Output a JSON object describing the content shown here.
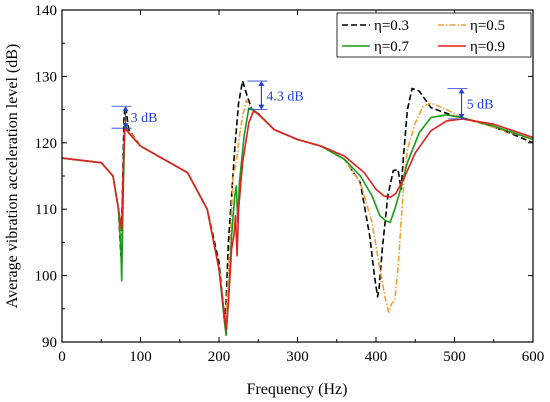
{
  "chart_data": {
    "type": "line",
    "xlabel": "Frequency (Hz)",
    "ylabel": "Average vibration acceleration level (dB)",
    "xlim": [
      0,
      600
    ],
    "ylim": [
      90,
      140
    ],
    "xticks": [
      0,
      100,
      200,
      300,
      400,
      500,
      600
    ],
    "yticks": [
      90,
      100,
      110,
      120,
      130,
      140
    ],
    "grid": false,
    "legend": "top-right",
    "series": [
      {
        "name": "η=0.3",
        "color": "#000000",
        "dash": "dashed",
        "points": [
          [
            0,
            117.7
          ],
          [
            50,
            117
          ],
          [
            65,
            115
          ],
          [
            72,
            110
          ],
          [
            75,
            103
          ],
          [
            77,
            112
          ],
          [
            79,
            124
          ],
          [
            81,
            125.5
          ],
          [
            85,
            122
          ],
          [
            100,
            119.5
          ],
          [
            130,
            117.5
          ],
          [
            160,
            115.5
          ],
          [
            185,
            110
          ],
          [
            200,
            102
          ],
          [
            205,
            96
          ],
          [
            207,
            93
          ],
          [
            209,
            96
          ],
          [
            212,
            105
          ],
          [
            216,
            112
          ],
          [
            220,
            119
          ],
          [
            225,
            126
          ],
          [
            230,
            129.3
          ],
          [
            236,
            127
          ],
          [
            242,
            125
          ],
          [
            250,
            124.4
          ],
          [
            270,
            122
          ],
          [
            300,
            120.5
          ],
          [
            330,
            119.5
          ],
          [
            360,
            117.5
          ],
          [
            380,
            114
          ],
          [
            392,
            106
          ],
          [
            398,
            100
          ],
          [
            402,
            96.8
          ],
          [
            404,
            98
          ],
          [
            408,
            104
          ],
          [
            415,
            112
          ],
          [
            422,
            115.8
          ],
          [
            428,
            116
          ],
          [
            432,
            113
          ],
          [
            435,
            118
          ],
          [
            440,
            125
          ],
          [
            446,
            128.2
          ],
          [
            455,
            127.8
          ],
          [
            470,
            125.3
          ],
          [
            500,
            124
          ],
          [
            540,
            122.8
          ],
          [
            570,
            121.5
          ],
          [
            600,
            120
          ]
        ]
      },
      {
        "name": "η=0.5",
        "color": "#f0a030",
        "dash": "dashdot",
        "points": [
          [
            0,
            117.7
          ],
          [
            50,
            117
          ],
          [
            65,
            115
          ],
          [
            72,
            110
          ],
          [
            76,
            104
          ],
          [
            78,
            116
          ],
          [
            80,
            123.5
          ],
          [
            84,
            122
          ],
          [
            100,
            119.5
          ],
          [
            130,
            117.5
          ],
          [
            160,
            115.5
          ],
          [
            185,
            110
          ],
          [
            200,
            101
          ],
          [
            206,
            95
          ],
          [
            208,
            92.8
          ],
          [
            210,
            96
          ],
          [
            215,
            107
          ],
          [
            218,
            115
          ],
          [
            222,
            117
          ],
          [
            226,
            121
          ],
          [
            230,
            124
          ],
          [
            235,
            126.4
          ],
          [
            242,
            125
          ],
          [
            250,
            124.4
          ],
          [
            270,
            122
          ],
          [
            300,
            120.5
          ],
          [
            330,
            119.5
          ],
          [
            360,
            117.5
          ],
          [
            380,
            114
          ],
          [
            395,
            108
          ],
          [
            405,
            101
          ],
          [
            412,
            96.5
          ],
          [
            416,
            94.5
          ],
          [
            420,
            95.8
          ],
          [
            424,
            96.3
          ],
          [
            428,
            101
          ],
          [
            432,
            108
          ],
          [
            436,
            115
          ],
          [
            440,
            119
          ],
          [
            450,
            123
          ],
          [
            460,
            125.5
          ],
          [
            470,
            126
          ],
          [
            490,
            125
          ],
          [
            510,
            123.8
          ],
          [
            550,
            122.3
          ],
          [
            600,
            120.5
          ]
        ]
      },
      {
        "name": "η=0.7",
        "color": "#1a9a1a",
        "dash": "solid",
        "points": [
          [
            0,
            117.7
          ],
          [
            50,
            117
          ],
          [
            65,
            115
          ],
          [
            72,
            110
          ],
          [
            75,
            104
          ],
          [
            76,
            99.2
          ],
          [
            78,
            112
          ],
          [
            80,
            122.8
          ],
          [
            85,
            121.5
          ],
          [
            100,
            119.5
          ],
          [
            130,
            117.5
          ],
          [
            160,
            115.5
          ],
          [
            185,
            110
          ],
          [
            200,
            101
          ],
          [
            207,
            93
          ],
          [
            209,
            91
          ],
          [
            212,
            96
          ],
          [
            216,
            106
          ],
          [
            220,
            112
          ],
          [
            222,
            113.5
          ],
          [
            224,
            108
          ],
          [
            226,
            114
          ],
          [
            232,
            121
          ],
          [
            238,
            125.2
          ],
          [
            244,
            125
          ],
          [
            250,
            124.3
          ],
          [
            270,
            122
          ],
          [
            300,
            120.5
          ],
          [
            330,
            119.5
          ],
          [
            360,
            117.5
          ],
          [
            380,
            115
          ],
          [
            395,
            112
          ],
          [
            405,
            109
          ],
          [
            412,
            108.3
          ],
          [
            418,
            108
          ],
          [
            424,
            110
          ],
          [
            430,
            112.5
          ],
          [
            440,
            117
          ],
          [
            455,
            121.5
          ],
          [
            470,
            123.8
          ],
          [
            490,
            124.2
          ],
          [
            510,
            123.8
          ],
          [
            550,
            122.5
          ],
          [
            600,
            120.5
          ]
        ]
      },
      {
        "name": "η=0.9",
        "color": "#e02020",
        "dash": "solid",
        "points": [
          [
            0,
            117.7
          ],
          [
            50,
            117
          ],
          [
            65,
            115
          ],
          [
            72,
            110
          ],
          [
            76,
            107
          ],
          [
            78,
            116
          ],
          [
            80,
            122.2
          ],
          [
            85,
            121.5
          ],
          [
            100,
            119.5
          ],
          [
            130,
            117.5
          ],
          [
            160,
            115.5
          ],
          [
            185,
            110
          ],
          [
            200,
            101
          ],
          [
            207,
            94
          ],
          [
            209,
            91.8
          ],
          [
            212,
            96
          ],
          [
            216,
            104
          ],
          [
            219,
            106
          ],
          [
            221,
            109
          ],
          [
            223,
            103
          ],
          [
            225,
            110
          ],
          [
            230,
            117
          ],
          [
            238,
            123
          ],
          [
            244,
            124.8
          ],
          [
            250,
            124.3
          ],
          [
            270,
            122
          ],
          [
            300,
            120.5
          ],
          [
            330,
            119.5
          ],
          [
            360,
            118
          ],
          [
            385,
            115.5
          ],
          [
            400,
            113
          ],
          [
            410,
            112
          ],
          [
            418,
            111.8
          ],
          [
            425,
            112.3
          ],
          [
            435,
            114.5
          ],
          [
            450,
            118.5
          ],
          [
            470,
            121.8
          ],
          [
            490,
            123.3
          ],
          [
            510,
            123.6
          ],
          [
            550,
            122.8
          ],
          [
            600,
            120.8
          ]
        ]
      }
    ],
    "annotations": [
      {
        "text": "3 dB",
        "x": 81,
        "y1": 125.5,
        "y2": 122.2
      },
      {
        "text": "4.3 dB",
        "x": 254,
        "y1": 129.3,
        "y2": 125.0
      },
      {
        "text": "5 dB",
        "x": 509,
        "y1": 128.2,
        "y2": 123.6
      }
    ]
  },
  "colors": {
    "annotation": "#1f3fd6",
    "axis": "#000000"
  }
}
